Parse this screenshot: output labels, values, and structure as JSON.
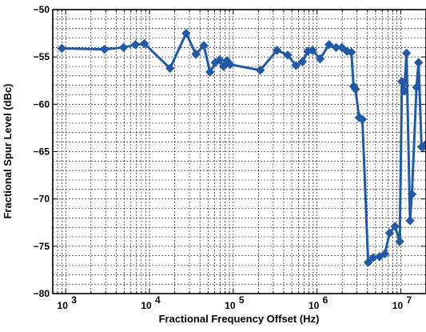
{
  "chart_data": {
    "type": "line",
    "xlabel": "Fractional Frequency Offset (Hz)",
    "ylabel": "Fractional Spur Level (dBc)",
    "x_scale": "log",
    "xlim": [
      700,
      20000000
    ],
    "ylim": [
      -80,
      -50
    ],
    "grid": true,
    "x_ticks": [
      {
        "value": 1000,
        "mantissa": "10",
        "exp": "3"
      },
      {
        "value": 10000,
        "mantissa": "10",
        "exp": "4"
      },
      {
        "value": 100000,
        "mantissa": "10",
        "exp": "5"
      },
      {
        "value": 1000000,
        "mantissa": "10",
        "exp": "6"
      },
      {
        "value": 10000000,
        "mantissa": "10",
        "exp": "7"
      }
    ],
    "y_ticks": [
      {
        "value": -50,
        "label": "−50"
      },
      {
        "value": -55,
        "label": "−55"
      },
      {
        "value": -60,
        "label": "−60"
      },
      {
        "value": -65,
        "label": "−65"
      },
      {
        "value": -70,
        "label": "−70"
      },
      {
        "value": -75,
        "label": "−75"
      },
      {
        "value": -80,
        "label": "−80"
      }
    ],
    "series": [
      {
        "color": "#2059a8",
        "marker": "diamond",
        "x": [
          900,
          2900,
          4900,
          6800,
          8700,
          17600,
          27400,
          35800,
          44500,
          52800,
          60900,
          69000,
          76600,
          84200,
          91700,
          210000,
          333000,
          447000,
          560000,
          669000,
          776000,
          881000,
          1090000,
          1390000,
          1690000,
          1980000,
          2280000,
          2570000,
          2730000,
          2880000,
          3180000,
          3480000,
          4080000,
          4670000,
          5570000,
          6460000,
          7350000,
          8540000,
          9720000,
          10300000,
          11000000,
          11700000,
          12900000,
          13600000,
          15400000,
          16300000,
          17700000,
          18500000,
          19500000
        ],
        "y": [
          -54.1,
          -54.2,
          -54.0,
          -53.7,
          -53.6,
          -56.2,
          -52.5,
          -54.7,
          -53.8,
          -56.6,
          -55.6,
          -55.3,
          -56.0,
          -55.4,
          -55.8,
          -56.4,
          -54.3,
          -54.8,
          -55.9,
          -55.5,
          -54.4,
          -54.3,
          -55.2,
          -53.7,
          -54.0,
          -54.0,
          -54.4,
          -54.5,
          -58.1,
          -58.4,
          -61.4,
          -61.6,
          -76.7,
          -76.2,
          -76.1,
          -75.8,
          -73.6,
          -72.9,
          -74.5,
          -57.6,
          -58.6,
          -54.6,
          -72.3,
          -69.5,
          -58.2,
          -55.6,
          -64.5,
          -64.5,
          -64.3
        ]
      }
    ]
  }
}
